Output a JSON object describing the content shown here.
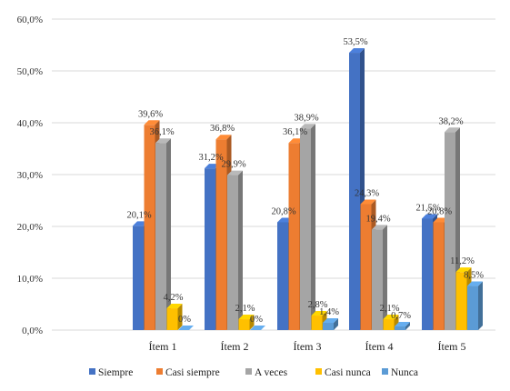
{
  "chart_data": {
    "type": "bar",
    "categories": [
      "Ítem 1",
      "Ítem 2",
      "Ítem 3",
      "Ítem 4",
      "Ítem 5"
    ],
    "series": [
      {
        "name": "Siempre",
        "color": "#4472C4",
        "values": [
          20.1,
          31.2,
          20.8,
          53.5,
          21.5
        ],
        "labels": [
          "20,1%",
          "31,2%",
          "20,8%",
          "53,5%",
          "21,5%"
        ]
      },
      {
        "name": "Casi siempre",
        "color": "#ED7D31",
        "values": [
          39.6,
          36.8,
          36.1,
          24.3,
          20.8
        ],
        "labels": [
          "39,6%",
          "36,8%",
          "36,1%",
          "24,3%",
          "20,8%"
        ]
      },
      {
        "name": "A veces",
        "color": "#A5A5A5",
        "values": [
          36.1,
          29.9,
          38.9,
          19.4,
          38.2
        ],
        "labels": [
          "36,1%",
          "29,9%",
          "38,9%",
          "19,4%",
          "38,2%"
        ]
      },
      {
        "name": "Casi nunca",
        "color": "#FFC000",
        "values": [
          4.2,
          2.1,
          2.8,
          2.1,
          11.2
        ],
        "labels": [
          "4,2%",
          "2,1%",
          "2,8%",
          "2,1%",
          "11,2%"
        ]
      },
      {
        "name": "Nunca",
        "color": "#5B9BD5",
        "values": [
          0,
          0,
          1.4,
          0.7,
          8.5
        ],
        "labels": [
          "0%",
          "0%",
          "1,4%",
          "0,7%",
          "8,5%"
        ]
      }
    ],
    "yticks": [
      "0,0%",
      "10,0%",
      "20,0%",
      "30,0%",
      "40,0%",
      "50,0%",
      "60,0%"
    ],
    "ylim": [
      0,
      60
    ],
    "grid": true,
    "legend_position": "bottom",
    "chart_style": "3d-clustered-column"
  }
}
